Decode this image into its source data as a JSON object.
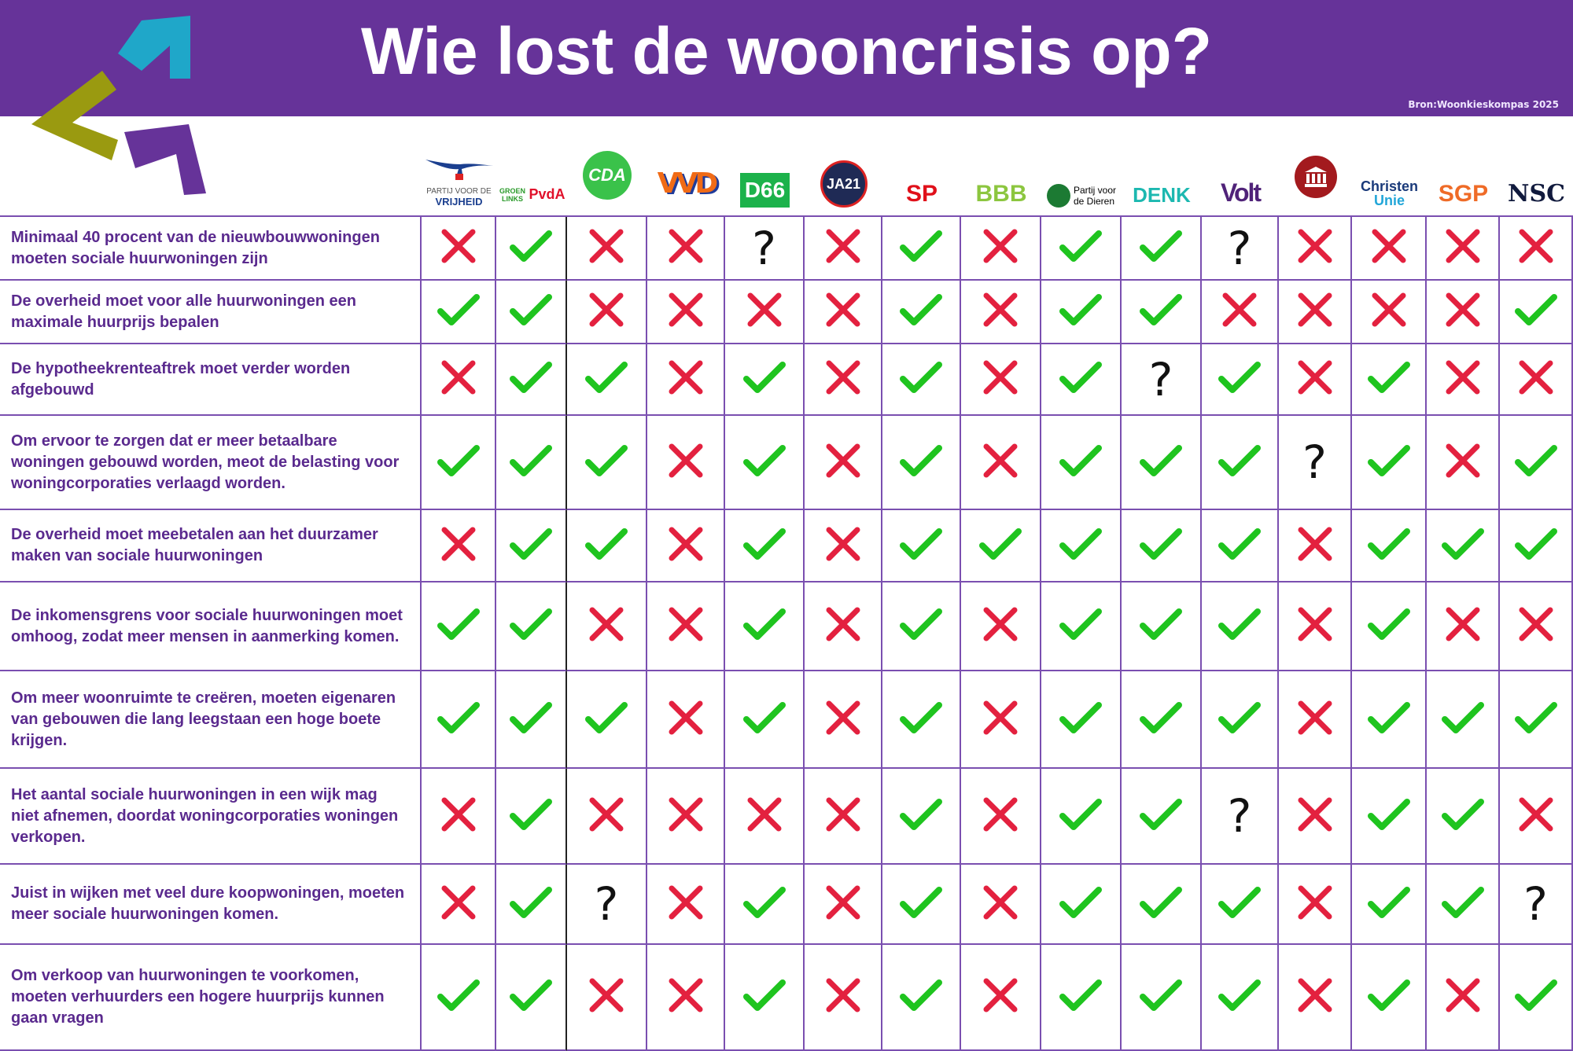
{
  "header": {
    "title": "Wie lost de wooncrisis op?",
    "source": "Bron:Woonkieskompas 2025"
  },
  "colors": {
    "purple": "#663399",
    "check": "#1fc41f",
    "cross": "#e3213f",
    "question": "#111111"
  },
  "parties": [
    {
      "id": "pvv",
      "logo_text": [
        "PARTIJ VOOR DE",
        "VRIJHEID"
      ]
    },
    {
      "id": "groenlinks-pvda",
      "logo_text": [
        "GROEN LINKS",
        "PvdA"
      ]
    },
    {
      "id": "cda",
      "logo_text": [
        "CDA"
      ]
    },
    {
      "id": "vvd",
      "logo_text": [
        "VVD"
      ]
    },
    {
      "id": "d66",
      "logo_text": [
        "D66"
      ]
    },
    {
      "id": "ja21",
      "logo_text": [
        "JA21"
      ]
    },
    {
      "id": "sp",
      "logo_text": [
        "SP"
      ]
    },
    {
      "id": "bbb",
      "logo_text": [
        "BBB"
      ]
    },
    {
      "id": "pvdd",
      "logo_text": [
        "Partij voor",
        "de Dieren"
      ]
    },
    {
      "id": "denk",
      "logo_text": [
        "DENK"
      ]
    },
    {
      "id": "volt",
      "logo_text": [
        "Volt"
      ]
    },
    {
      "id": "fvd",
      "logo_text": [
        "FvD"
      ]
    },
    {
      "id": "christenunie",
      "logo_text": [
        "Christen",
        "Unie"
      ]
    },
    {
      "id": "sgp",
      "logo_text": [
        "SGP"
      ]
    },
    {
      "id": "nsc",
      "logo_text": [
        "NSC"
      ]
    }
  ],
  "rows": [
    {
      "statement": "Minimaal 40 procent van de nieuwbouwwoningen moeten sociale huurwoningen zijn",
      "answers": [
        "no",
        "yes",
        "no",
        "no",
        "?",
        "no",
        "yes",
        "no",
        "yes",
        "yes",
        "?",
        "no",
        "no",
        "no",
        "no"
      ]
    },
    {
      "statement": "De overheid moet voor alle huurwoningen een maximale huurprijs bepalen",
      "answers": [
        "yes",
        "yes",
        "no",
        "no",
        "no",
        "no",
        "yes",
        "no",
        "yes",
        "yes",
        "no",
        "no",
        "no",
        "no",
        "yes"
      ]
    },
    {
      "statement": "De hypotheekrenteaftrek moet verder worden afgebouwd",
      "answers": [
        "no",
        "yes",
        "yes",
        "no",
        "yes",
        "no",
        "yes",
        "no",
        "yes",
        "?",
        "yes",
        "no",
        "yes",
        "no",
        "no"
      ]
    },
    {
      "statement": "Om ervoor te zorgen dat er meer betaalbare woningen gebouwd worden, meot de belasting voor woningcorporaties verlaagd worden.",
      "answers": [
        "yes",
        "yes",
        "yes",
        "no",
        "yes",
        "no",
        "yes",
        "no",
        "yes",
        "yes",
        "yes",
        "?",
        "yes",
        "no",
        "yes"
      ]
    },
    {
      "statement": "De overheid moet meebetalen aan het duurzamer maken van sociale huurwoningen",
      "answers": [
        "no",
        "yes",
        "yes",
        "no",
        "yes",
        "no",
        "yes",
        "yes",
        "yes",
        "yes",
        "yes",
        "no",
        "yes",
        "yes",
        "yes"
      ]
    },
    {
      "statement": "De inkomensgrens voor sociale huurwoningen moet omhoog, zodat meer mensen in aanmerking komen.",
      "answers": [
        "yes",
        "yes",
        "no",
        "no",
        "yes",
        "no",
        "yes",
        "no",
        "yes",
        "yes",
        "yes",
        "no",
        "yes",
        "no",
        "no"
      ]
    },
    {
      "statement": "Om meer woonruimte te creëren, moeten eigenaren van gebouwen die lang leegstaan een hoge boete krijgen.",
      "answers": [
        "yes",
        "yes",
        "yes",
        "no",
        "yes",
        "no",
        "yes",
        "no",
        "yes",
        "yes",
        "yes",
        "no",
        "yes",
        "yes",
        "yes"
      ]
    },
    {
      "statement": "Het aantal sociale huurwoningen in een wijk mag niet afnemen, doordat woningcorporaties woningen verkopen.",
      "answers": [
        "no",
        "yes",
        "no",
        "no",
        "no",
        "no",
        "yes",
        "no",
        "yes",
        "yes",
        "?",
        "no",
        "yes",
        "yes",
        "no"
      ]
    },
    {
      "statement": "Juist in wijken met veel dure koopwoningen, moeten meer sociale huurwoningen komen.",
      "answers": [
        "no",
        "yes",
        "?",
        "no",
        "yes",
        "no",
        "yes",
        "no",
        "yes",
        "yes",
        "yes",
        "no",
        "yes",
        "yes",
        "?"
      ]
    },
    {
      "statement": "Om verkoop van huurwoningen te voorkomen, moeten verhuurders een hogere huurprijs kunnen gaan vragen",
      "answers": [
        "yes",
        "yes",
        "no",
        "no",
        "yes",
        "no",
        "yes",
        "no",
        "yes",
        "yes",
        "yes",
        "no",
        "yes",
        "no",
        "yes"
      ]
    }
  ]
}
